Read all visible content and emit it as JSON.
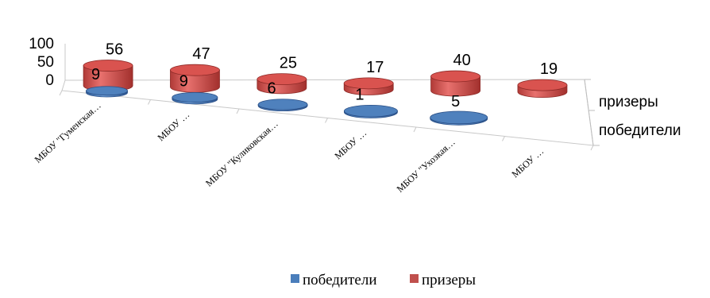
{
  "chart_data": {
    "type": "bar",
    "subtype": "3d-cylinder",
    "categories": [
      "МБОУ \"Гуменская…",
      "МБОУ …",
      "МБОУ \"Куликовская…",
      "МБОУ …",
      "МБОУ \"Ухозкая…",
      "МБОУ …"
    ],
    "series": [
      {
        "name": "победители",
        "values": [
          9,
          9,
          6,
          1,
          5,
          null
        ],
        "color": "#4a7ebb"
      },
      {
        "name": "призеры",
        "values": [
          56,
          47,
          25,
          17,
          40,
          19
        ],
        "color": "#c0504d"
      }
    ],
    "data_labels": {
      "победители": [
        "9",
        "9",
        "6",
        "1",
        "5",
        ""
      ],
      "призеры": [
        "56",
        "47",
        "25",
        "17",
        "40",
        "19"
      ]
    },
    "y_ticks": [
      "100",
      "50",
      "0"
    ],
    "ylim": [
      0,
      100
    ],
    "depth_labels": [
      "призеры",
      "победители"
    ],
    "legend": {
      "position": "bottom",
      "items": [
        {
          "label": "победители",
          "color": "#4a7ebb"
        },
        {
          "label": "призеры",
          "color": "#c0504d"
        }
      ]
    },
    "title": "",
    "xlabel": "",
    "ylabel": ""
  }
}
